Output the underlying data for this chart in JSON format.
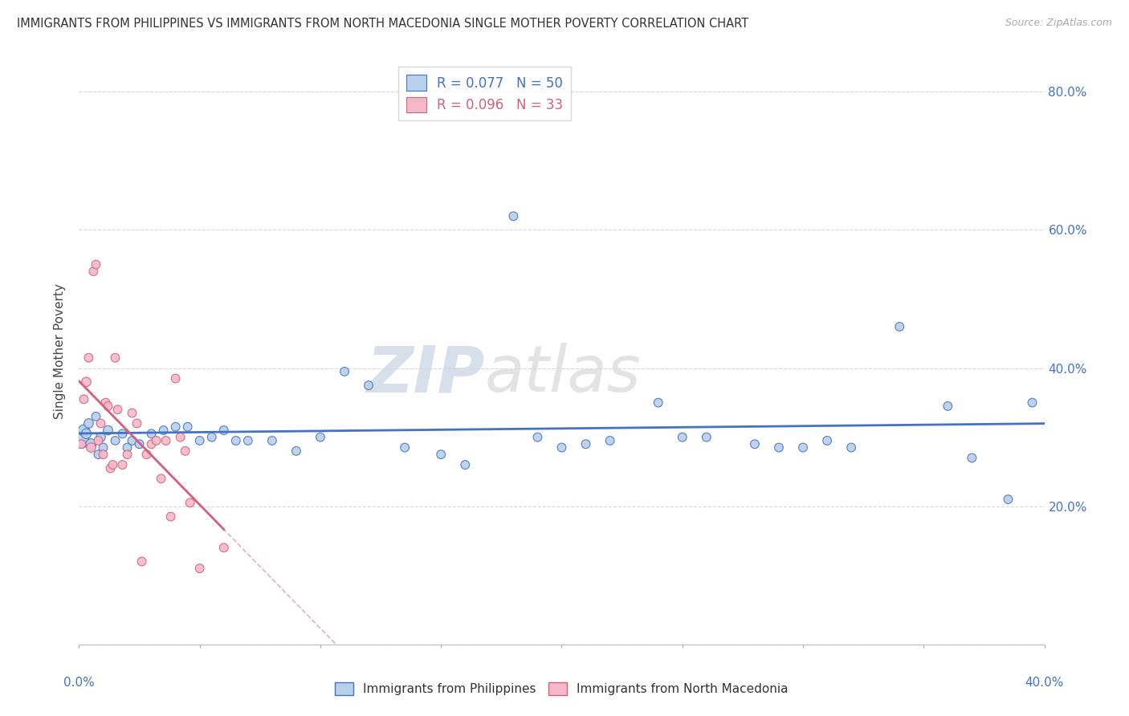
{
  "title": "IMMIGRANTS FROM PHILIPPINES VS IMMIGRANTS FROM NORTH MACEDONIA SINGLE MOTHER POVERTY CORRELATION CHART",
  "source": "Source: ZipAtlas.com",
  "ylabel": "Single Mother Poverty",
  "xlim": [
    0.0,
    0.4
  ],
  "ylim": [
    0.0,
    0.85
  ],
  "xticks": [
    0.0,
    0.05,
    0.1,
    0.15,
    0.2,
    0.25,
    0.3,
    0.35,
    0.4
  ],
  "yticks": [
    0.0,
    0.2,
    0.4,
    0.6,
    0.8
  ],
  "right_ytick_labels": [
    "",
    "20.0%",
    "40.0%",
    "60.0%",
    "80.0%"
  ],
  "blue_fill": "#b8d0ea",
  "blue_edge": "#4472c4",
  "pink_fill": "#f5b8c8",
  "pink_edge": "#d4607a",
  "R_blue": 0.077,
  "N_blue": 50,
  "R_pink": 0.096,
  "N_pink": 33,
  "watermark": "ZIPatlas",
  "phil_x": [
    0.001,
    0.002,
    0.003,
    0.004,
    0.005,
    0.007,
    0.008,
    0.009,
    0.01,
    0.012,
    0.015,
    0.018,
    0.02,
    0.022,
    0.025,
    0.03,
    0.035,
    0.04,
    0.045,
    0.05,
    0.055,
    0.06,
    0.065,
    0.07,
    0.08,
    0.09,
    0.1,
    0.11,
    0.12,
    0.135,
    0.15,
    0.16,
    0.18,
    0.19,
    0.2,
    0.21,
    0.22,
    0.24,
    0.25,
    0.26,
    0.28,
    0.29,
    0.3,
    0.31,
    0.32,
    0.34,
    0.36,
    0.37,
    0.385,
    0.395
  ],
  "phil_y": [
    0.295,
    0.31,
    0.305,
    0.32,
    0.29,
    0.33,
    0.275,
    0.3,
    0.285,
    0.31,
    0.295,
    0.305,
    0.285,
    0.295,
    0.29,
    0.305,
    0.31,
    0.315,
    0.315,
    0.295,
    0.3,
    0.31,
    0.295,
    0.295,
    0.295,
    0.28,
    0.3,
    0.395,
    0.375,
    0.285,
    0.275,
    0.26,
    0.62,
    0.3,
    0.285,
    0.29,
    0.295,
    0.35,
    0.3,
    0.3,
    0.29,
    0.285,
    0.285,
    0.295,
    0.285,
    0.46,
    0.345,
    0.27,
    0.21,
    0.35
  ],
  "phil_size": [
    180,
    100,
    80,
    70,
    90,
    60,
    60,
    70,
    60,
    70,
    60,
    60,
    60,
    60,
    60,
    60,
    60,
    60,
    60,
    60,
    60,
    60,
    60,
    60,
    60,
    60,
    60,
    60,
    60,
    60,
    60,
    60,
    60,
    60,
    60,
    60,
    60,
    60,
    60,
    60,
    60,
    60,
    60,
    60,
    60,
    60,
    60,
    60,
    60,
    60
  ],
  "mace_x": [
    0.001,
    0.002,
    0.003,
    0.004,
    0.005,
    0.006,
    0.007,
    0.008,
    0.009,
    0.01,
    0.011,
    0.012,
    0.013,
    0.014,
    0.015,
    0.016,
    0.018,
    0.02,
    0.022,
    0.024,
    0.026,
    0.028,
    0.03,
    0.032,
    0.034,
    0.036,
    0.038,
    0.04,
    0.042,
    0.044,
    0.046,
    0.05,
    0.06
  ],
  "mace_y": [
    0.29,
    0.355,
    0.38,
    0.415,
    0.285,
    0.54,
    0.55,
    0.295,
    0.32,
    0.275,
    0.35,
    0.345,
    0.255,
    0.26,
    0.415,
    0.34,
    0.26,
    0.275,
    0.335,
    0.32,
    0.12,
    0.275,
    0.29,
    0.295,
    0.24,
    0.295,
    0.185,
    0.385,
    0.3,
    0.28,
    0.205,
    0.11,
    0.14
  ],
  "mace_size": [
    60,
    60,
    70,
    60,
    70,
    60,
    60,
    60,
    60,
    60,
    60,
    60,
    60,
    60,
    60,
    60,
    60,
    60,
    60,
    60,
    60,
    60,
    60,
    60,
    60,
    60,
    60,
    60,
    60,
    60,
    60,
    60,
    60
  ]
}
